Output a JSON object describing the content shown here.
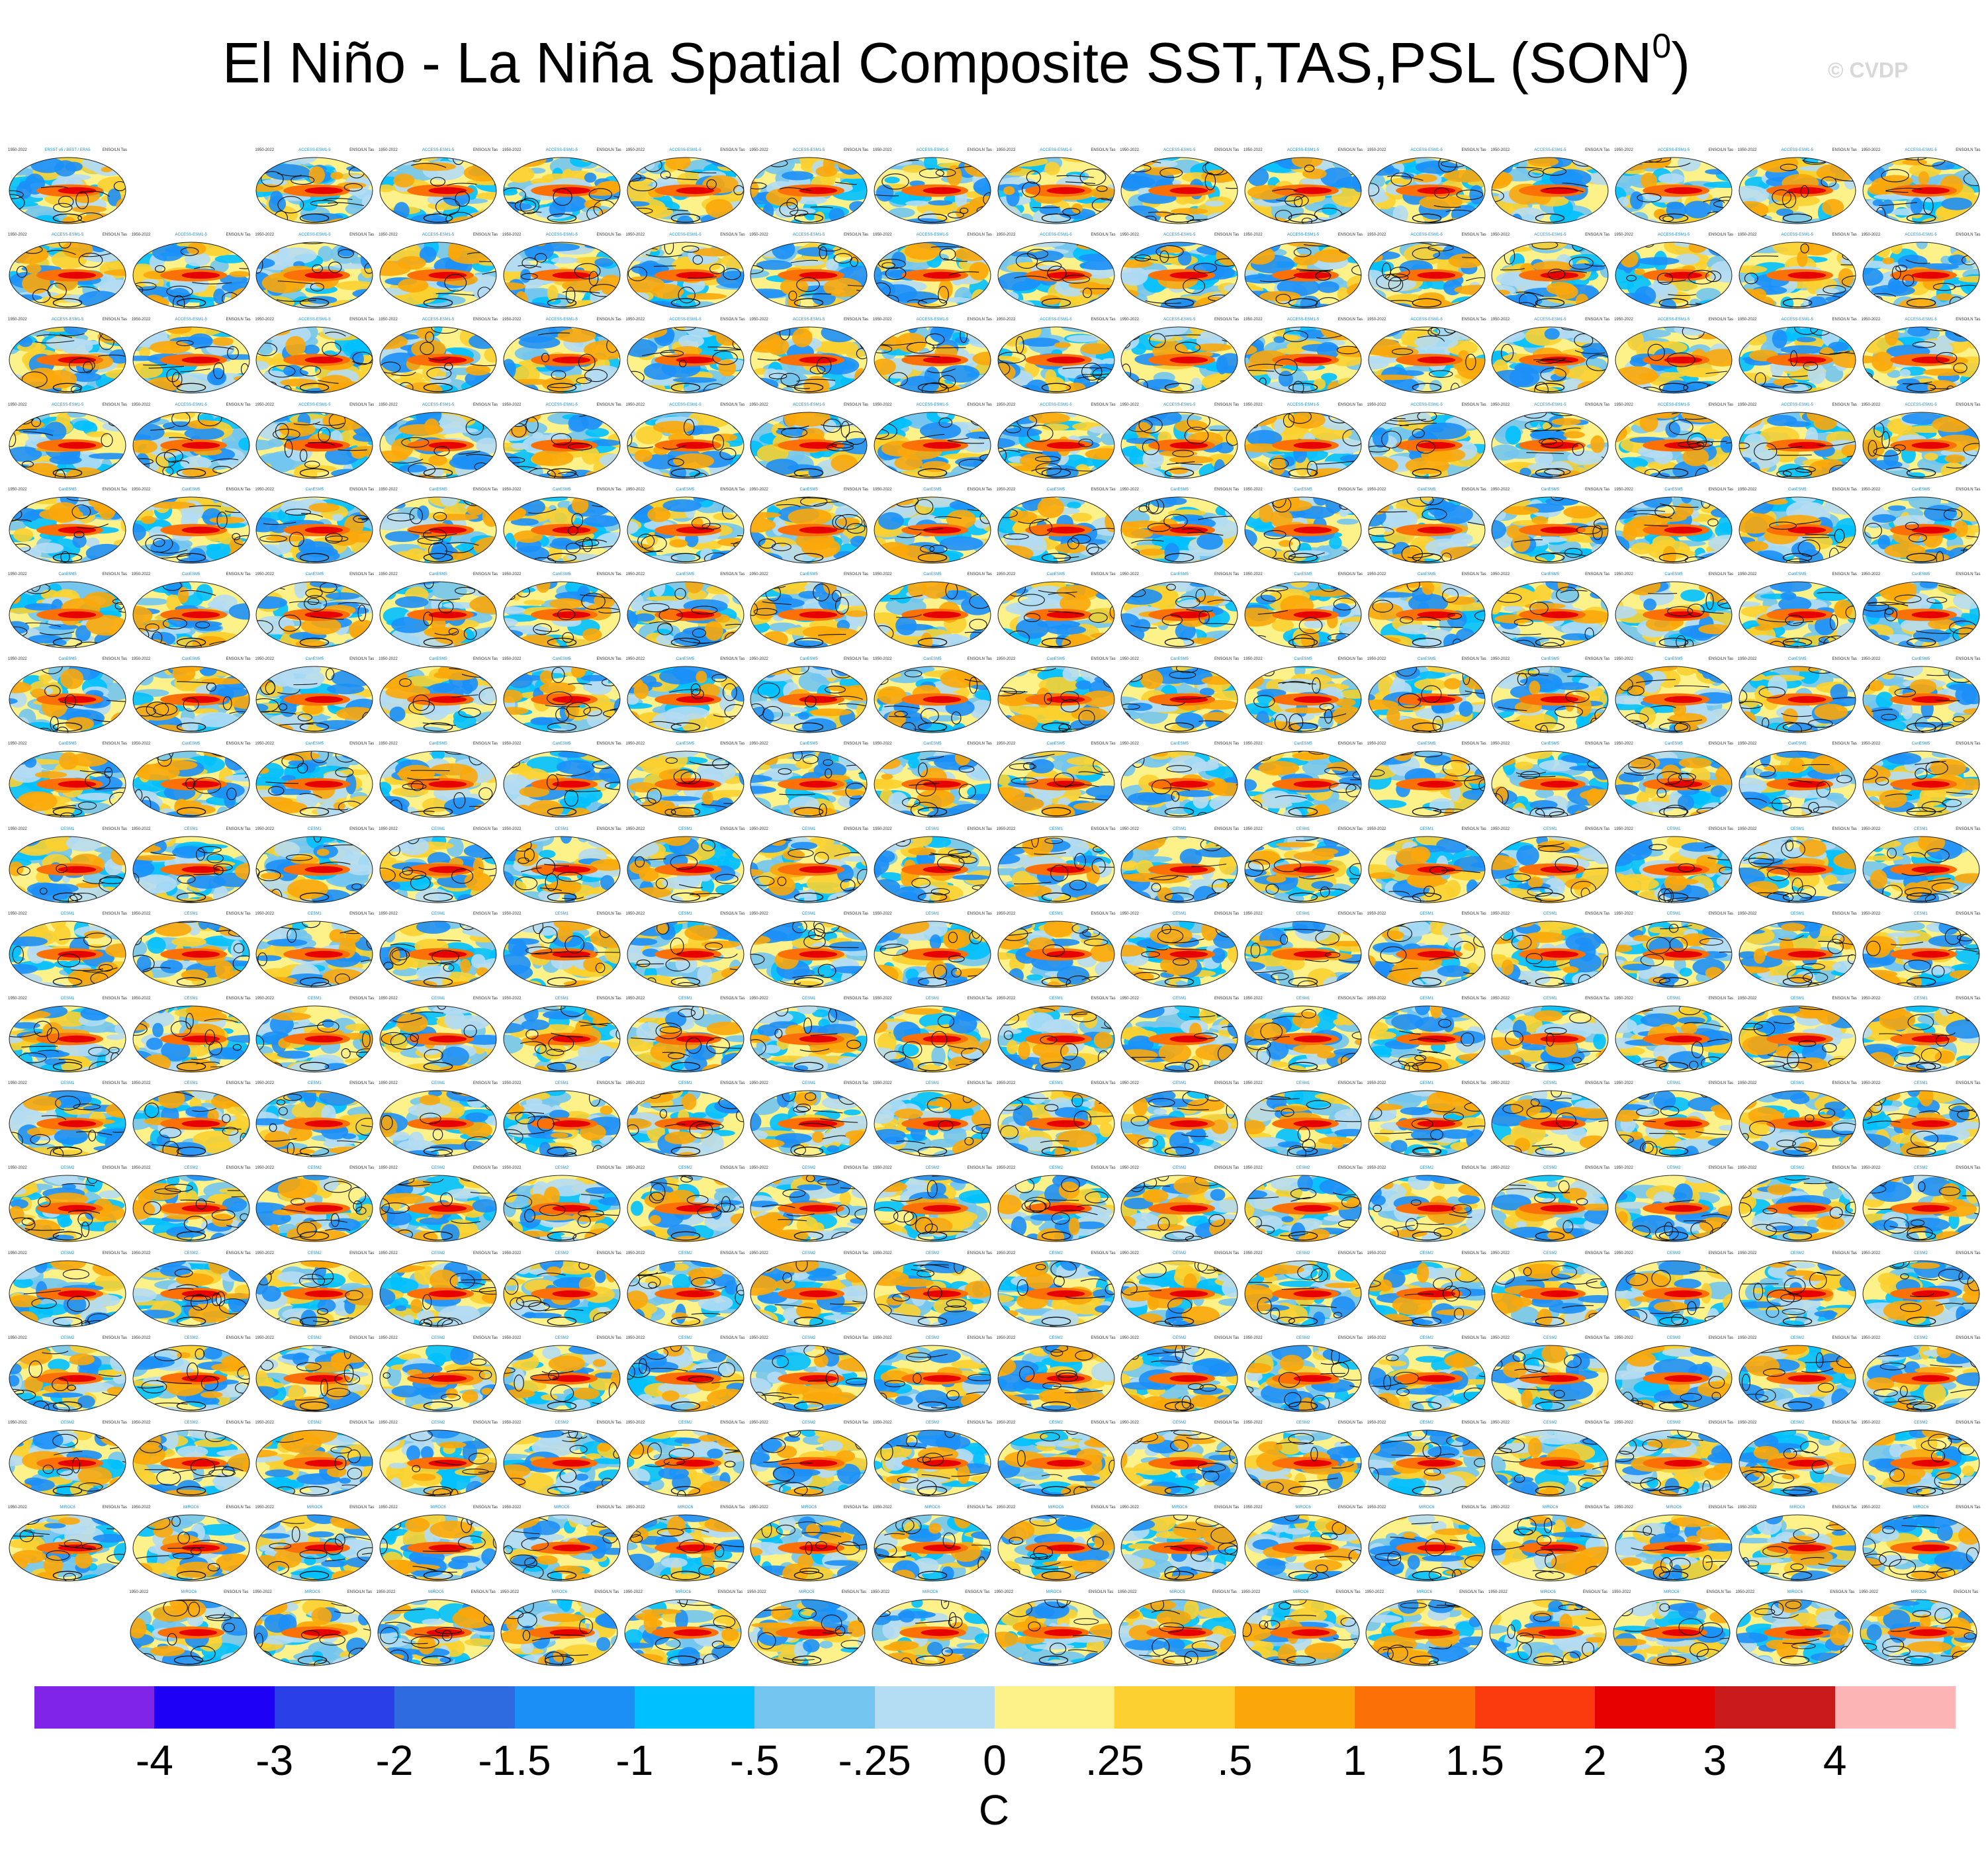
{
  "header": {
    "title_main": "El Niño - La Niña Spatial Composite SST,TAS,PSL (SON",
    "title_sup": "0",
    "title_close": ")",
    "watermark": "© CVDP"
  },
  "panel_labels": {
    "left": "1950-2022",
    "right": "ENSO/LN Tas",
    "obs_title": "ERSST v5 / BEST / ERA5",
    "model_prefixes": [
      "ACCESS-ESM1-5",
      "CanESM5",
      "CESM1",
      "CESM2",
      "MIROC6"
    ]
  },
  "chart_data": {
    "type": "heatmap",
    "title": "El Niño - La Niña Spatial Composite SST,TAS,PSL (SON0)",
    "variables": [
      "SST",
      "TAS",
      "PSL"
    ],
    "season": "SON",
    "grid": {
      "rows": 18,
      "columns": 16,
      "last_row_panels": 15,
      "first_row_skips_column": 2
    },
    "colorbar": {
      "unit": "C",
      "tick_labels": [
        "-4",
        "-3",
        "-2",
        "-1.5",
        "-1",
        "-.5",
        "-.25",
        "0",
        ".25",
        ".5",
        "1",
        "1.5",
        "2",
        "3",
        "4"
      ],
      "colors": [
        "#8024e8",
        "#1e00f5",
        "#2a3fe6",
        "#2f6be0",
        "#1c8ff7",
        "#00c0ff",
        "#73c5f0",
        "#b4dcf3",
        "#fdf28a",
        "#fbd030",
        "#fba70a",
        "#fb7108",
        "#fb3a0e",
        "#e60000",
        "#c81a1a",
        "#fdb4b4"
      ]
    }
  }
}
